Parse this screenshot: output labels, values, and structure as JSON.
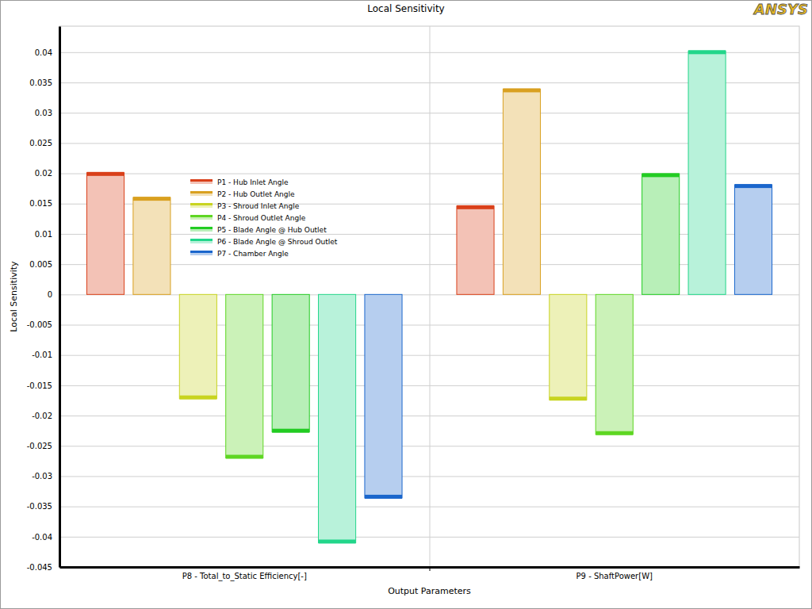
{
  "chart_data": {
    "type": "bar",
    "title": "Local Sensitivity",
    "x_label": "Output Parameters",
    "y_label": "Local Sensitivity",
    "annotations": [
      "ANSYS"
    ],
    "categories": [
      "P8 - Total_to_Static Efficiency[-]",
      "P9 - ShaftPower[W]"
    ],
    "series": [
      {
        "name": "P1 - Hub Inlet Angle",
        "color": "#d9401a",
        "values": [
          0.0201,
          0.0146
        ]
      },
      {
        "name": "P2 - Hub Outlet Angle",
        "color": "#d9a020",
        "values": [
          0.016,
          0.0339
        ]
      },
      {
        "name": "P3 - Shroud Inlet Angle",
        "color": "#c8d420",
        "values": [
          -0.0172,
          -0.0174
        ]
      },
      {
        "name": "P4 - Shroud Outlet Angle",
        "color": "#5ed622",
        "values": [
          -0.027,
          -0.0231
        ]
      },
      {
        "name": "P5 - Blade Angle @ Hub Outlet",
        "color": "#22cc22",
        "values": [
          -0.0227,
          0.0199
        ]
      },
      {
        "name": "P6 - Blade Angle @ Shroud Outlet",
        "color": "#22d68a",
        "values": [
          -0.041,
          0.0402
        ]
      },
      {
        "name": "P7 - Chamber Angle",
        "color": "#1a66cc",
        "values": [
          -0.0336,
          0.0181
        ]
      }
    ],
    "ylim": [
      -0.045,
      0.0443
    ],
    "yticks": [
      -0.045,
      -0.04,
      -0.035,
      -0.03,
      -0.025,
      -0.02,
      -0.015,
      -0.01,
      -0.005,
      0,
      0.005,
      0.01,
      0.015,
      0.02,
      0.025,
      0.03,
      0.035,
      0.04
    ],
    "grid": true,
    "legend": "upper left"
  }
}
